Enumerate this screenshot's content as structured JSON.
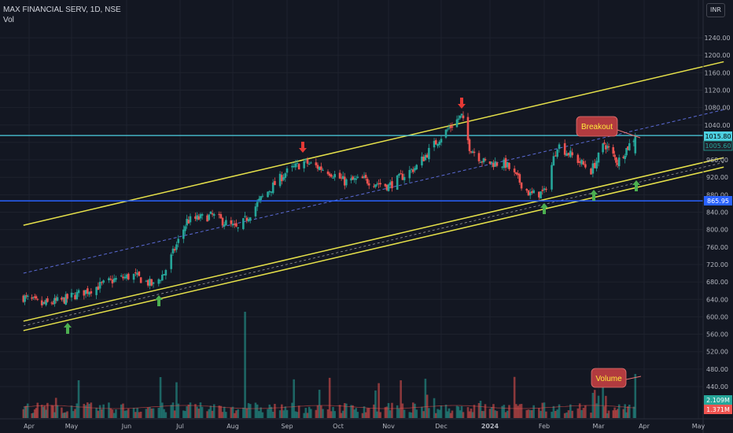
{
  "header": {
    "title": "MAX FINANCIAL SERV, 1D, NSE",
    "indicator": "Vol",
    "currency_button": "INR"
  },
  "colors": {
    "background": "#131722",
    "up": "#26a69a",
    "down": "#ef5350",
    "channel": "#e6e14a",
    "resistance": "#4dd0e1",
    "support": "#2962ff",
    "midline": "#5b6bd6",
    "arrow_up": "#4caf50",
    "arrow_down": "#e53935",
    "callout": "#b23b3f",
    "callout_text": "#ffeb3b"
  },
  "price_badges": {
    "last": "1015.80",
    "prev": "1005.60",
    "support": "865.95"
  },
  "volume_badges": {
    "vol": "2.109M",
    "vol_ma": "1.371M"
  },
  "annotations": {
    "breakout": "Breakout",
    "volume": "Volume"
  },
  "chart_data": {
    "type": "candlestick",
    "symbol": "MAX FINANCIAL SERV",
    "interval": "1D",
    "exchange": "NSE",
    "ylim": [
      440,
      1280
    ],
    "y_ticks": [
      440,
      480,
      520,
      560,
      600,
      640,
      680,
      720,
      760,
      800,
      840,
      880,
      920,
      960,
      1000,
      1040,
      1080,
      1120,
      1160,
      1200,
      1240
    ],
    "x_ticks": [
      "Apr",
      "May",
      "Jun",
      "Jul",
      "Aug",
      "Sep",
      "Oct",
      "Nov",
      "Dec",
      "2024",
      "Feb",
      "Mar",
      "Apr",
      "May"
    ],
    "close_path": [
      {
        "date": "2023-03-28",
        "close": 645
      },
      {
        "date": "2023-04-10",
        "close": 628
      },
      {
        "date": "2023-04-25",
        "close": 638
      },
      {
        "date": "2023-05-10",
        "close": 660
      },
      {
        "date": "2023-05-25",
        "close": 685
      },
      {
        "date": "2023-06-05",
        "close": 695
      },
      {
        "date": "2023-06-16",
        "close": 672
      },
      {
        "date": "2023-06-22",
        "close": 700
      },
      {
        "date": "2023-07-05",
        "close": 820
      },
      {
        "date": "2023-07-20",
        "close": 832
      },
      {
        "date": "2023-07-28",
        "close": 815
      },
      {
        "date": "2023-08-04",
        "close": 800
      },
      {
        "date": "2023-08-17",
        "close": 870
      },
      {
        "date": "2023-08-31",
        "close": 930
      },
      {
        "date": "2023-09-11",
        "close": 955
      },
      {
        "date": "2023-09-25",
        "close": 935
      },
      {
        "date": "2023-10-05",
        "close": 910
      },
      {
        "date": "2023-10-16",
        "close": 915
      },
      {
        "date": "2023-11-01",
        "close": 900
      },
      {
        "date": "2023-11-17",
        "close": 945
      },
      {
        "date": "2023-11-30",
        "close": 1010
      },
      {
        "date": "2023-12-12",
        "close": 1055
      },
      {
        "date": "2023-12-14",
        "close": 1060
      },
      {
        "date": "2023-12-19",
        "close": 990
      },
      {
        "date": "2023-12-28",
        "close": 955
      },
      {
        "date": "2024-01-10",
        "close": 950
      },
      {
        "date": "2024-01-24",
        "close": 880
      },
      {
        "date": "2024-02-01",
        "close": 885
      },
      {
        "date": "2024-02-08",
        "close": 995
      },
      {
        "date": "2024-02-26",
        "close": 935
      },
      {
        "date": "2024-03-05",
        "close": 998
      },
      {
        "date": "2024-03-14",
        "close": 955
      },
      {
        "date": "2024-03-26",
        "close": 1015
      }
    ],
    "volume": {
      "average": "1.371M",
      "last": "2.109M"
    },
    "horizontal_levels": [
      1015.8,
      865.95
    ],
    "channel": {
      "upper": [
        {
          "date": "2023-03-28",
          "price": 810
        },
        {
          "date": "2024-05-15",
          "price": 1185
        }
      ],
      "lower": [
        {
          "date": "2023-03-28",
          "price": 590
        },
        {
          "date": "2024-05-15",
          "price": 965
        }
      ]
    },
    "markers": {
      "up_arrows": [
        "2023-05-01",
        "2023-06-23",
        "2024-02-01",
        "2024-02-29",
        "2024-03-26"
      ],
      "down_arrows": [
        "2023-09-11",
        "2023-12-14"
      ]
    },
    "grid": true
  }
}
